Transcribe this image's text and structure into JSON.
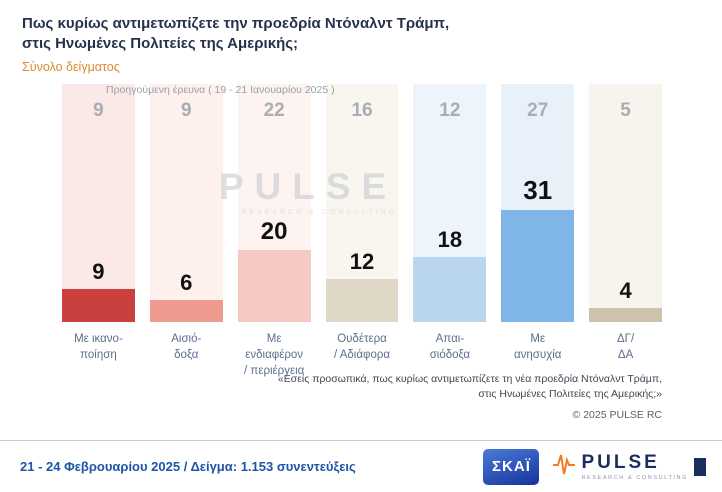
{
  "header": {
    "title": "Πως κυρίως αντιμετωπίζετε την προεδρία Ντόναλντ Τράμπ,\nστις Ηνωμένες Πολιτείες της Αμερικής;",
    "subtitle": "Σύνολο δείγματος"
  },
  "chart_data": {
    "type": "bar",
    "title": "Πως κυρίως αντιμετωπίζετε την προεδρία Ντόναλντ Τράμπ, στις Ηνωμένες Πολιτείες της Αμερικής;",
    "previous_survey_label": "Προηγούμενη έρευνα ( 19 - 21 Ιανουαρίου 2025 )",
    "categories": [
      "Με ικανο-\nποίηση",
      "Αισιό-\nδοξα",
      "Με ενδιαφέρον\n/ περιέργεια",
      "Ουδέτερα\n/ Αδιάφορα",
      "Απαι-\nσιόδοξα",
      "Με\nανησυχία",
      "ΔΓ/\nΔΑ"
    ],
    "series": [
      {
        "name": "previous",
        "values": [
          9,
          9,
          22,
          16,
          12,
          27,
          5
        ]
      },
      {
        "name": "current",
        "values": [
          9,
          6,
          20,
          12,
          18,
          31,
          4
        ]
      }
    ],
    "ylim": [
      0,
      35
    ],
    "legend_position": "none",
    "grid": false,
    "bar_colors": [
      "#c9403f",
      "#ef9a8e",
      "#f6c9c2",
      "#e0d8c6",
      "#b9d6ee",
      "#7fb6e7",
      "#cdc3ab"
    ],
    "column_bg_colors": [
      "#fbe9e7",
      "#fdf0ed",
      "#fdf3f1",
      "#f8f6ef",
      "#eef4fb",
      "#e8f1fa",
      "#f6f4ed"
    ],
    "value_label_color": "#111111",
    "previous_value_color": "#a9adb4"
  },
  "watermark": {
    "text": "PULSE",
    "caption": "RESEARCH & CONSULTING"
  },
  "footnote": {
    "line1": "«Εσείς προσωπικά, πως κυρίως αντιμετωπίζετε τη νέα προεδρία Ντόναλντ Τράμπ,",
    "line2": "στις Ηνωμένες Πολιτείες της Αμερικής;»",
    "copyright": "©  2025  PULSE RC"
  },
  "footer": {
    "fieldwork": "21 - 24 Φεβρουαρίου 2025  /  Δείγμα:  1.153 συνεντεύξεις",
    "skai_logo_text": "ΣΚΑΪ",
    "pulse_logo_text": "PULSE",
    "pulse_logo_caption": "RESEARCH & CONSULTING"
  }
}
